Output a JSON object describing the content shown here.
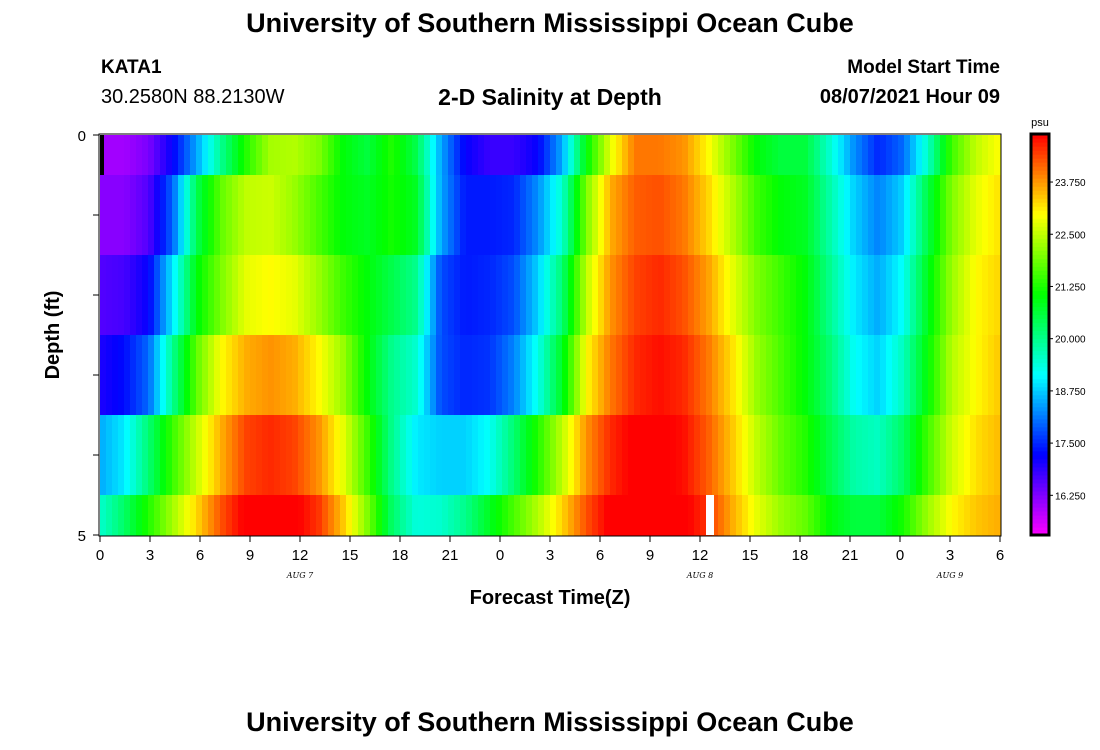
{
  "header": {
    "title": "University of Southern Mississippi Ocean Cube",
    "station": "KATA1",
    "coordinates": "30.2580N  88.2130W",
    "chart_title": "2-D Salinity at Depth",
    "model_start_label": "Model Start Time",
    "model_start_value": "08/07/2021 Hour 09"
  },
  "footer": {
    "title": "University of Southern Mississippi Ocean Cube"
  },
  "chart_data": {
    "type": "heatmap",
    "title": "2-D Salinity at Depth",
    "xlabel": "Forecast Time(Z)",
    "ylabel": "Depth (ft)",
    "x_tick_labels": [
      "0",
      "3",
      "6",
      "9",
      "12",
      "15",
      "18",
      "21",
      "0",
      "3",
      "6",
      "9",
      "12",
      "15",
      "18",
      "21",
      "0",
      "3",
      "6"
    ],
    "x_hours": [
      0,
      6,
      12,
      18,
      24,
      30,
      36,
      42,
      48,
      54
    ],
    "date_labels": [
      {
        "label": "AUG 7",
        "hour": 12
      },
      {
        "label": "AUG 8",
        "hour": 36
      },
      {
        "label": "AUG 9",
        "hour": 51
      }
    ],
    "y_tick_labels": [
      "0",
      "5"
    ],
    "ylim": [
      0,
      5
    ],
    "depth_bands": [
      "0-0.5",
      "0.5-1.5",
      "1.5-2.5",
      "2.5-3.5",
      "3.5-4.5",
      "4.5-5"
    ],
    "values": [
      [
        16.0,
        16.0,
        16.3,
        17.2,
        18.5,
        20.0,
        21.3,
        22.3,
        22.4,
        22.0,
        21.0,
        20.6,
        21.3,
        20.5,
        18.5,
        17.2,
        16.8,
        16.8,
        17.2,
        18.5,
        21.0,
        22.8,
        24.0,
        24.0,
        23.8,
        23.0,
        22.0,
        21.0,
        20.6,
        20.6,
        19.5,
        18.3,
        17.5,
        18.0,
        19.5,
        21.5,
        22.5,
        23.0
      ],
      [
        16.2,
        16.2,
        16.6,
        18.0,
        20.5,
        21.8,
        22.5,
        22.6,
        22.2,
        21.6,
        21.0,
        20.8,
        21.2,
        20.8,
        18.5,
        17.4,
        17.4,
        17.5,
        18.3,
        19.5,
        22.0,
        23.6,
        24.2,
        24.3,
        24.0,
        23.3,
        22.4,
        21.5,
        21.0,
        20.8,
        19.8,
        18.8,
        18.2,
        18.8,
        20.5,
        22.0,
        22.8,
        23.2
      ],
      [
        16.6,
        16.7,
        17.2,
        19.0,
        21.0,
        22.0,
        22.8,
        23.0,
        22.8,
        22.2,
        21.5,
        21.0,
        20.5,
        20.0,
        17.8,
        17.4,
        17.5,
        17.8,
        18.8,
        20.2,
        22.5,
        23.8,
        24.4,
        24.6,
        24.3,
        23.7,
        22.8,
        22.0,
        21.5,
        21.0,
        20.0,
        19.0,
        18.5,
        19.2,
        20.8,
        22.2,
        23.0,
        23.3
      ],
      [
        17.0,
        17.3,
        18.0,
        20.0,
        21.8,
        23.0,
        23.6,
        23.8,
        23.6,
        23.0,
        22.2,
        21.0,
        20.0,
        19.5,
        17.8,
        17.5,
        17.6,
        18.2,
        19.3,
        20.8,
        23.0,
        24.0,
        24.6,
        24.8,
        24.6,
        24.0,
        23.2,
        22.2,
        21.6,
        21.0,
        20.2,
        19.2,
        18.8,
        19.6,
        21.0,
        22.4,
        23.0,
        23.4
      ],
      [
        18.5,
        19.0,
        20.2,
        21.5,
        22.6,
        23.6,
        24.4,
        24.6,
        24.4,
        23.8,
        22.8,
        21.5,
        20.0,
        19.0,
        18.8,
        18.8,
        19.2,
        20.2,
        21.3,
        22.5,
        23.8,
        24.6,
        25.0,
        25.0,
        24.8,
        24.2,
        23.4,
        22.5,
        21.8,
        21.3,
        20.5,
        19.8,
        19.6,
        20.3,
        21.5,
        22.6,
        23.2,
        23.5
      ],
      [
        19.5,
        20.3,
        21.3,
        22.3,
        23.3,
        24.3,
        25.0,
        25.3,
        25.0,
        24.5,
        23.4,
        22.0,
        20.3,
        19.4,
        19.5,
        20.0,
        20.8,
        21.6,
        22.4,
        23.3,
        24.3,
        25.0,
        25.3,
        25.3,
        25.0,
        24.5,
        23.6,
        22.8,
        22.2,
        21.8,
        21.0,
        20.6,
        20.6,
        21.2,
        22.2,
        23.0,
        23.4,
        23.6
      ]
    ],
    "colorbar": {
      "unit": "psu",
      "tick_labels": [
        "16.250",
        "17.500",
        "18.750",
        "20.000",
        "21.250",
        "22.500",
        "23.750"
      ],
      "tick_values": [
        16.25,
        17.5,
        18.75,
        20.0,
        21.25,
        22.5,
        23.75
      ],
      "range": [
        15.3,
        24.9
      ]
    },
    "markers": [
      {
        "type": "current-time-bar",
        "color": "#000000",
        "hour": 0
      },
      {
        "type": "highlight-bar",
        "color": "#ffffff",
        "hour": 36.6
      }
    ]
  }
}
